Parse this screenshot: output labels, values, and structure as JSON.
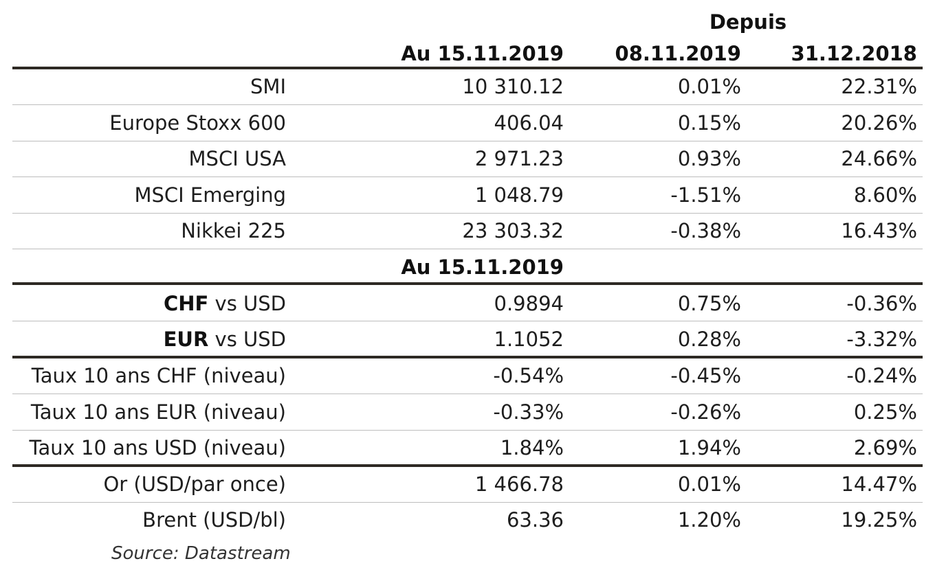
{
  "header": {
    "since_label": "Depuis",
    "col_value": "Au 15.11.2019",
    "col_week": "08.11.2019",
    "col_ytd": "31.12.2018"
  },
  "indices": [
    {
      "label": "SMI",
      "value": "10 310.12",
      "week": "0.01%",
      "ytd": "22.31%"
    },
    {
      "label": "Europe Stoxx 600",
      "value": "406.04",
      "week": "0.15%",
      "ytd": "20.26%"
    },
    {
      "label": "MSCI USA",
      "value": "2 971.23",
      "week": "0.93%",
      "ytd": "24.66%"
    },
    {
      "label": "MSCI Emerging",
      "value": "1 048.79",
      "week": "-1.51%",
      "ytd": "8.60%"
    },
    {
      "label": "Nikkei 225",
      "value": "23 303.32",
      "week": "-0.38%",
      "ytd": "16.43%"
    }
  ],
  "fx_header": "Au 15.11.2019",
  "fx": [
    {
      "label_bold": "CHF",
      "label_rest": " vs USD",
      "value": "0.9894",
      "week": "0.75%",
      "ytd": "-0.36%"
    },
    {
      "label_bold": "EUR",
      "label_rest": " vs USD",
      "value": "1.1052",
      "week": "0.28%",
      "ytd": "-3.32%"
    }
  ],
  "rates": [
    {
      "label": "Taux 10 ans CHF (niveau)",
      "value": "-0.54%",
      "week": "-0.45%",
      "ytd": "-0.24%"
    },
    {
      "label": "Taux 10 ans EUR (niveau)",
      "value": "-0.33%",
      "week": "-0.26%",
      "ytd": "0.25%"
    },
    {
      "label": "Taux 10 ans USD (niveau)",
      "value": "1.84%",
      "week": "1.94%",
      "ytd": "2.69%"
    }
  ],
  "commodities": [
    {
      "label": "Or (USD/par once)",
      "value": "1 466.78",
      "week": "0.01%",
      "ytd": "14.47%"
    },
    {
      "label": "Brent (USD/bl)",
      "value": "63.36",
      "week": "1.20%",
      "ytd": "19.25%"
    }
  ],
  "source": "Source: Datastream"
}
